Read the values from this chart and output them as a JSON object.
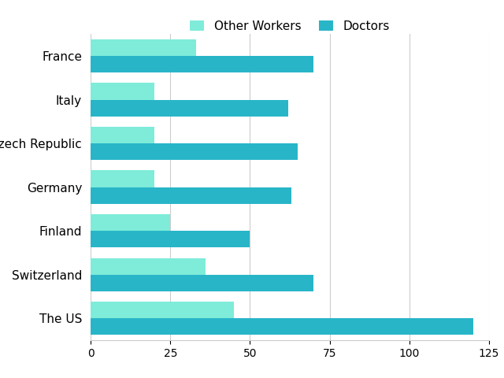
{
  "categories": [
    "France",
    "Italy",
    "Czech Republic",
    "Germany",
    "Finland",
    "Switzerland",
    "The US"
  ],
  "other_workers": [
    33,
    20,
    20,
    20,
    25,
    36,
    45
  ],
  "doctors": [
    70,
    62,
    65,
    63,
    50,
    70,
    120
  ],
  "other_workers_color": "#7EECD9",
  "doctors_color": "#29B5C8",
  "legend_labels": [
    "Other Workers",
    "Doctors"
  ],
  "xlim": [
    0,
    125
  ],
  "xticks": [
    0,
    25,
    50,
    75,
    100,
    125
  ],
  "bar_height": 0.38,
  "background_color": "#ffffff",
  "grid_color": "#cccccc",
  "figsize": [
    6.4,
    4.8
  ],
  "dpi": 100
}
